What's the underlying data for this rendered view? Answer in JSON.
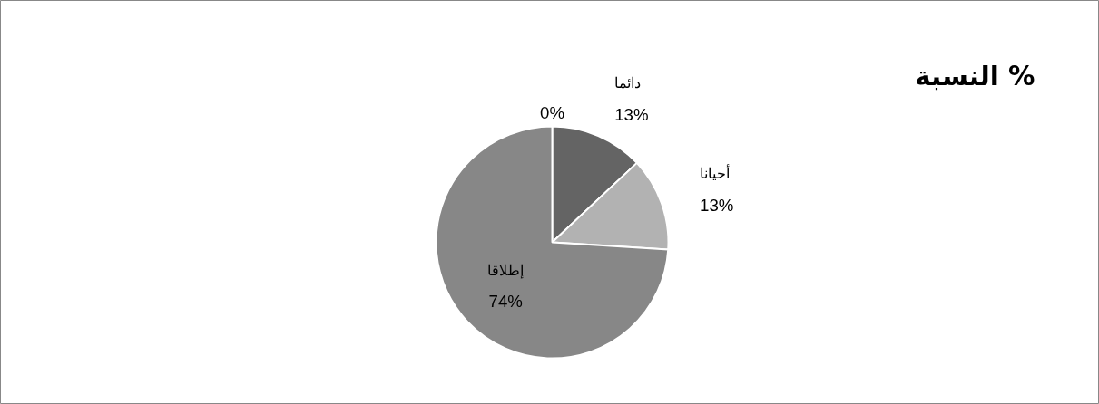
{
  "chart_data": {
    "type": "pie",
    "title": "النسبة %",
    "categories": [
      "دائما",
      "أحيانا",
      "إطلاقا",
      null
    ],
    "values": [
      13,
      13,
      74,
      0
    ],
    "colors": [
      "#646464",
      "#b2b2b2",
      "#878787",
      "#9a9a9a"
    ],
    "value_labels": [
      "13%",
      "13%",
      "74%",
      "0%"
    ]
  }
}
